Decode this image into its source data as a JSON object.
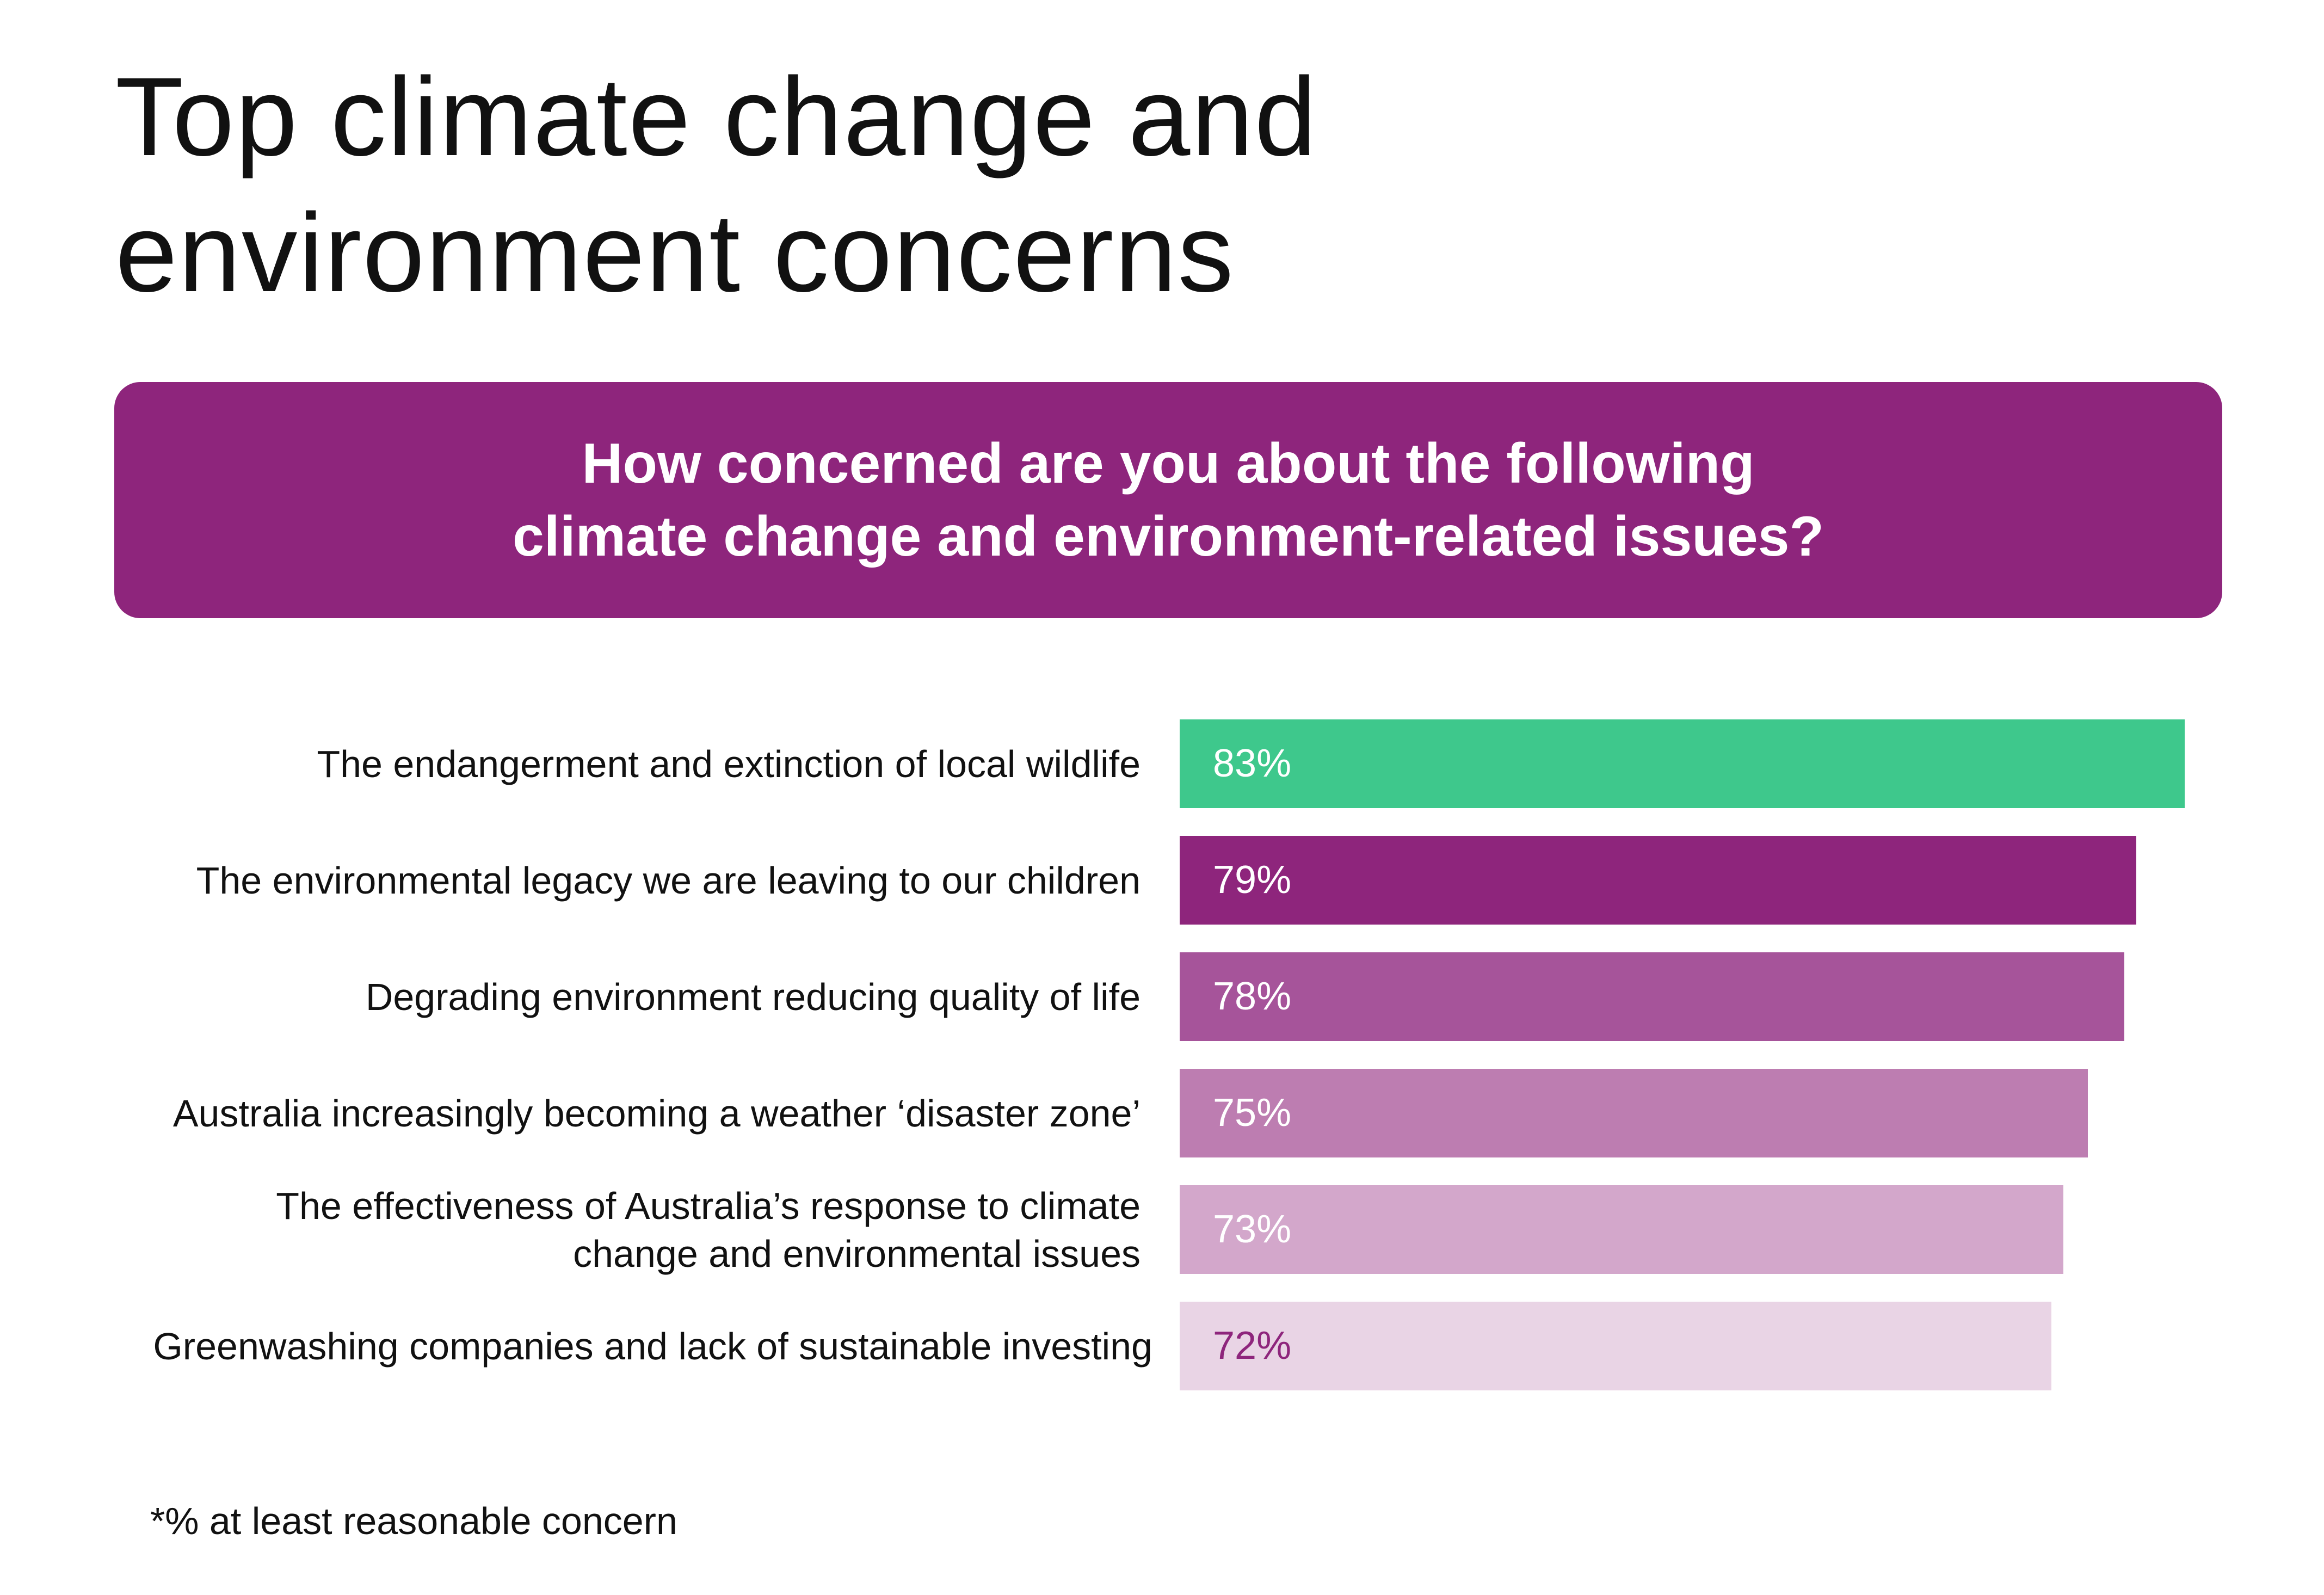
{
  "title_lines": [
    "Top climate change and",
    "environment concerns"
  ],
  "question_lines": [
    "How concerned are you about the following",
    "climate change and environment-related issues?"
  ],
  "chart_data": {
    "type": "bar",
    "orientation": "horizontal",
    "categories": [
      "The endangerment and extinction of local wildlife",
      "The environmental legacy we are leaving to our children",
      "Degrading environment reducing quality of life",
      "Australia increasingly becoming a weather ‘disaster zone’",
      "The effectiveness of Australia’s response to climate change and environmental issues",
      "Greenwashing companies and lack of sustainable investing"
    ],
    "category_lines": [
      [
        "The endangerment and extinction of local wildlife"
      ],
      [
        "The environmental legacy we are leaving to our children"
      ],
      [
        "Degrading environment reducing quality of life"
      ],
      [
        "Australia increasingly becoming a weather ‘disaster zone’"
      ],
      [
        "The effectiveness of Australia’s response to climate",
        "change and environmental issues"
      ],
      [
        "Greenwashing companies and lack of sustainable investing"
      ]
    ],
    "values": [
      83,
      79,
      78,
      75,
      73,
      72
    ],
    "data_labels": [
      "83%",
      "79%",
      "78%",
      "75%",
      "73%",
      "72%"
    ],
    "colors": [
      "#3ec88c",
      "#8e257c",
      "#a6549a",
      "#bd7db1",
      "#d3a7cb",
      "#e9d4e5"
    ],
    "label_colors": [
      "#ffffff",
      "#ffffff",
      "#ffffff",
      "#ffffff",
      "#ffffff",
      "#8e257c"
    ],
    "grid": false,
    "xlabel": "",
    "ylabel": ""
  },
  "footnote": "*% at least reasonable concern"
}
